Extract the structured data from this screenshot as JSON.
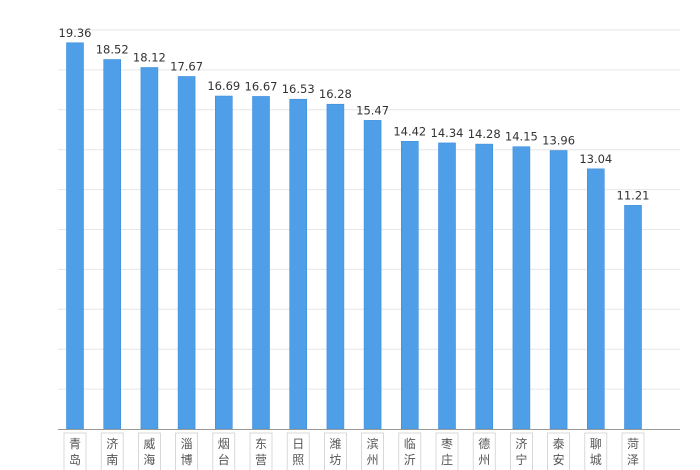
{
  "chart_data": {
    "type": "bar",
    "categories": [
      "青岛",
      "济南",
      "威海",
      "淄博",
      "烟台",
      "东营",
      "日照",
      "潍坊",
      "滨州",
      "临沂",
      "枣庄",
      "德州",
      "济宁",
      "泰安",
      "聊城",
      "菏泽"
    ],
    "values": [
      19.36,
      18.52,
      18.12,
      17.67,
      16.69,
      16.67,
      16.53,
      16.28,
      15.47,
      14.42,
      14.34,
      14.28,
      14.15,
      13.96,
      13.04,
      11.21
    ],
    "value_labels": [
      "19.36",
      "18.52",
      "18.12",
      "17.67",
      "16.69",
      "16.67",
      "16.53",
      "16.28",
      "15.47",
      "14.42",
      "14.34",
      "14.28",
      "14.15",
      "13.96",
      "13.04",
      "11.21"
    ],
    "title": "",
    "xlabel": "",
    "ylabel": "",
    "ylim": [
      0,
      20
    ],
    "grid": true,
    "legend": "none",
    "colors": {
      "bar": "#4f9ee8",
      "bar_edge": "#3f8fdc",
      "grid": "#e6e6e6",
      "axis": "#999999",
      "label": "#333333",
      "tick_label": "#555555"
    }
  }
}
